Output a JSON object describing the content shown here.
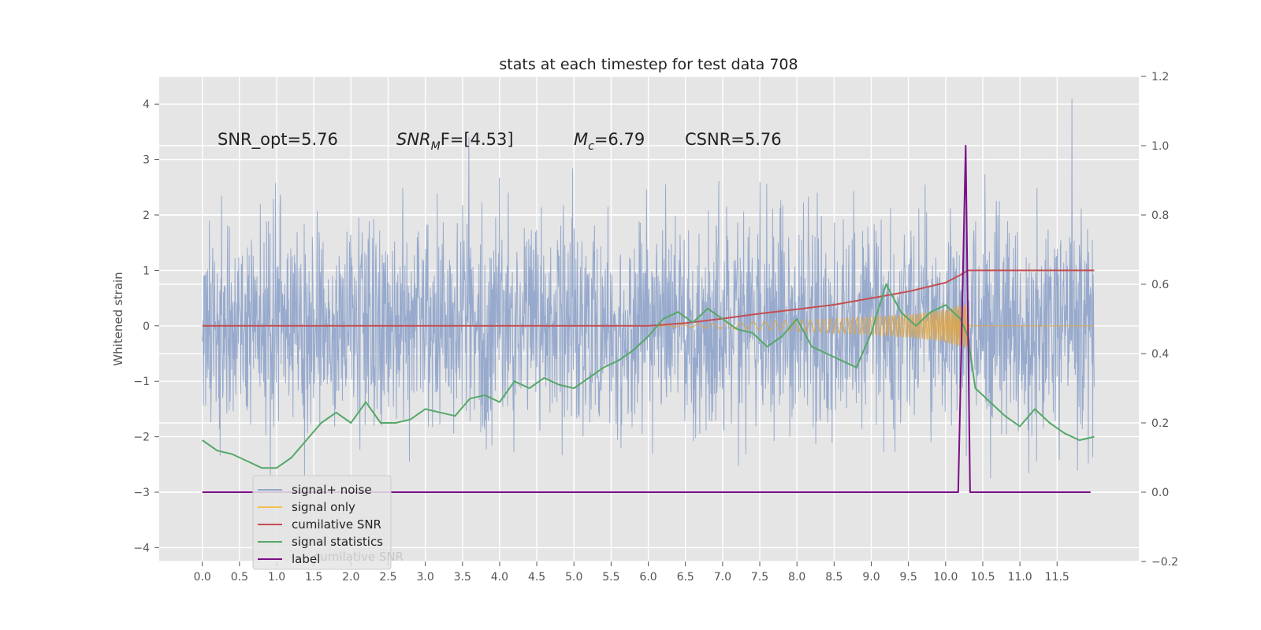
{
  "chart_data": {
    "type": "line",
    "title": "stats at each timestep for test data 708",
    "ylabel": "Whitened strain",
    "xlabel": "",
    "xlim": [
      -0.58,
      12.6
    ],
    "ylim": [
      -4.25,
      4.5
    ],
    "y2lim": [
      -0.2,
      1.2
    ],
    "grid": true,
    "legend_position": "lower-left",
    "x_ticks": [
      "0.0",
      "0.5",
      "1.0",
      "1.5",
      "2.0",
      "2.5",
      "3.0",
      "3.5",
      "4.0",
      "4.5",
      "5.0",
      "5.5",
      "6.0",
      "6.5",
      "7.0",
      "7.5",
      "8.0",
      "8.5",
      "9.0",
      "9.5",
      "10.0",
      "10.5",
      "11.0",
      "11.5"
    ],
    "y_ticks": [
      "4",
      "3",
      "2",
      "1",
      "0",
      "−1",
      "−2",
      "−3",
      "−4"
    ],
    "y2_ticks": [
      "1.2",
      "1.0",
      "0.8",
      "0.6",
      "0.4",
      "0.2",
      "0.0",
      "−0.2"
    ],
    "annotations": [
      {
        "id": "snr-opt",
        "text": "SNR_opt=5.76"
      },
      {
        "id": "snr-mf",
        "text": "SNR_MF=[4.53]",
        "parts": [
          "SNR",
          "M",
          "F=[4.53]"
        ]
      },
      {
        "id": "mc",
        "text": "M_c=6.79",
        "parts": [
          "M",
          "c",
          "=6.79"
        ]
      },
      {
        "id": "csnr",
        "text": "CSNR=5.76"
      }
    ],
    "legend": [
      {
        "label": "signal+ noise",
        "color": "#92a7cb"
      },
      {
        "label": "signal only",
        "color": "#f2c14e"
      },
      {
        "label": "cumilative SNR",
        "color": "#c44e52"
      },
      {
        "label": "signal statistics",
        "color": "#55a868"
      },
      {
        "label": "label",
        "color": "#7b0f87"
      }
    ],
    "legend_overlap_text": "cumilative SNR",
    "series": [
      {
        "name": "signal+ noise",
        "axis": "left",
        "color": "#92a7cb",
        "kind": "noise",
        "x_range": [
          0.0,
          12.0
        ],
        "typical_range": [
          -2.0,
          2.0
        ],
        "max": 4.1,
        "min": -3.85
      },
      {
        "name": "signal only",
        "axis": "left",
        "color": "#dca54a",
        "kind": "chirp",
        "envelope": [
          [
            6.0,
            0.0
          ],
          [
            7.0,
            0.05
          ],
          [
            8.0,
            0.1
          ],
          [
            9.0,
            0.16
          ],
          [
            9.6,
            0.22
          ],
          [
            10.0,
            0.3
          ],
          [
            10.2,
            0.38
          ],
          [
            10.3,
            0.4
          ],
          [
            10.32,
            0.0
          ],
          [
            12.0,
            0.0
          ]
        ]
      },
      {
        "name": "cumilative SNR",
        "axis": "left",
        "color": "#c44e52",
        "x": [
          0.0,
          1.0,
          2.0,
          3.0,
          4.0,
          5.0,
          6.0,
          6.5,
          7.0,
          7.5,
          8.0,
          8.5,
          9.0,
          9.5,
          10.0,
          10.2,
          10.3,
          10.32,
          12.0
        ],
        "y": [
          0.0,
          0.0,
          0.0,
          0.0,
          0.0,
          0.0,
          0.0,
          0.05,
          0.13,
          0.22,
          0.3,
          0.38,
          0.5,
          0.62,
          0.78,
          0.92,
          1.0,
          1.0,
          1.0
        ]
      },
      {
        "name": "signal statistics",
        "axis": "right",
        "color": "#55a868",
        "x": [
          0.0,
          0.2,
          0.4,
          0.6,
          0.8,
          1.0,
          1.2,
          1.4,
          1.6,
          1.8,
          2.0,
          2.2,
          2.4,
          2.6,
          2.8,
          3.0,
          3.2,
          3.4,
          3.6,
          3.8,
          4.0,
          4.2,
          4.4,
          4.6,
          4.8,
          5.0,
          5.2,
          5.4,
          5.6,
          5.8,
          6.0,
          6.2,
          6.4,
          6.6,
          6.8,
          7.0,
          7.2,
          7.4,
          7.6,
          7.8,
          8.0,
          8.2,
          8.4,
          8.6,
          8.8,
          9.0,
          9.2,
          9.4,
          9.6,
          9.8,
          10.0,
          10.2,
          10.3,
          10.4,
          10.6,
          10.8,
          11.0,
          11.2,
          11.4,
          11.6,
          11.8,
          12.0
        ],
        "y": [
          0.15,
          0.12,
          0.11,
          0.09,
          0.07,
          0.07,
          0.1,
          0.15,
          0.2,
          0.23,
          0.2,
          0.26,
          0.2,
          0.2,
          0.21,
          0.24,
          0.23,
          0.22,
          0.27,
          0.28,
          0.26,
          0.32,
          0.3,
          0.33,
          0.31,
          0.3,
          0.33,
          0.36,
          0.38,
          0.41,
          0.45,
          0.5,
          0.52,
          0.49,
          0.53,
          0.5,
          0.47,
          0.46,
          0.42,
          0.45,
          0.5,
          0.42,
          0.4,
          0.38,
          0.36,
          0.46,
          0.6,
          0.52,
          0.48,
          0.52,
          0.54,
          0.5,
          0.45,
          0.3,
          0.26,
          0.22,
          0.19,
          0.24,
          0.2,
          0.17,
          0.15,
          0.16
        ]
      },
      {
        "name": "label",
        "axis": "right",
        "color": "#7b0f87",
        "x": [
          0.0,
          10.17,
          10.27,
          10.33,
          11.95
        ],
        "y": [
          0.0,
          0.0,
          1.0,
          0.0,
          0.0
        ]
      }
    ]
  }
}
